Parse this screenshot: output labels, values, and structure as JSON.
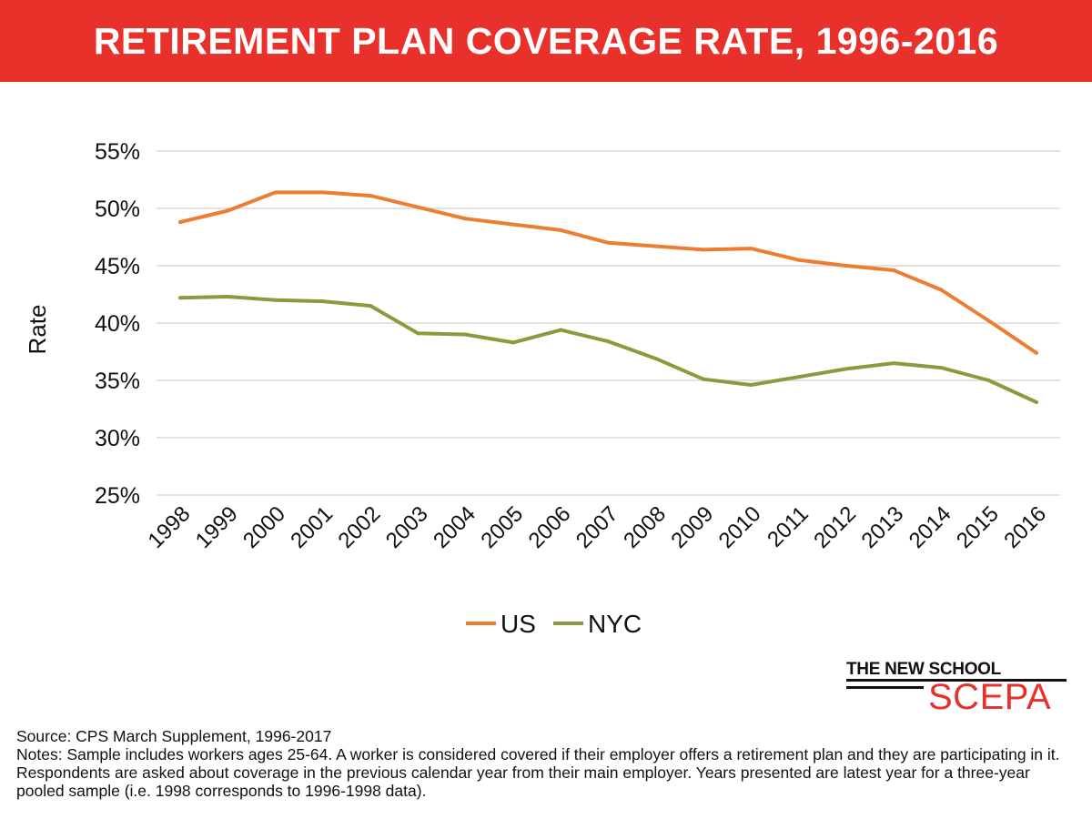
{
  "header": {
    "title": "RETIREMENT PLAN COVERAGE RATE, 1996-2016"
  },
  "chart_data": {
    "type": "line",
    "title": "RETIREMENT PLAN COVERAGE RATE, 1996-2016",
    "xlabel": "",
    "ylabel": "Rate",
    "categories": [
      "1998",
      "1999",
      "2000",
      "2001",
      "2002",
      "2003",
      "2004",
      "2005",
      "2006",
      "2007",
      "2008",
      "2009",
      "2010",
      "2011",
      "2012",
      "2013",
      "2014",
      "2015",
      "2016"
    ],
    "ylim": [
      25,
      55
    ],
    "yticks": [
      25,
      30,
      35,
      40,
      45,
      50,
      55
    ],
    "ytick_labels": [
      "25%",
      "30%",
      "35%",
      "40%",
      "45%",
      "50%",
      "55%"
    ],
    "grid": true,
    "legend_position": "bottom-center",
    "series": [
      {
        "name": "US",
        "color": "#ed7d31",
        "values": [
          48.8,
          49.8,
          51.4,
          51.4,
          51.1,
          50.1,
          49.1,
          48.6,
          48.1,
          47.0,
          46.7,
          46.4,
          46.5,
          45.5,
          45.0,
          44.6,
          42.9,
          40.2,
          37.4
        ]
      },
      {
        "name": "NYC",
        "color": "#8c9a3e",
        "values": [
          42.2,
          42.3,
          42.0,
          41.9,
          41.5,
          39.1,
          39.0,
          38.3,
          39.4,
          38.4,
          36.9,
          35.1,
          34.6,
          35.3,
          36.0,
          36.5,
          36.1,
          35.0,
          33.1
        ]
      }
    ]
  },
  "logo": {
    "line1": "THE NEW SCHOOL",
    "line2": "SCEPA"
  },
  "footer": {
    "source": "Source: CPS March Supplement, 1996-2017",
    "notes": "Notes: Sample includes workers ages 25-64. A worker is considered covered if their employer offers a retirement plan and they are participating in it. Respondents are asked about coverage in the previous calendar year from their main employer. Years presented are latest year for a three-year pooled sample (i.e. 1998 corresponds to 1996-1998 data)."
  }
}
